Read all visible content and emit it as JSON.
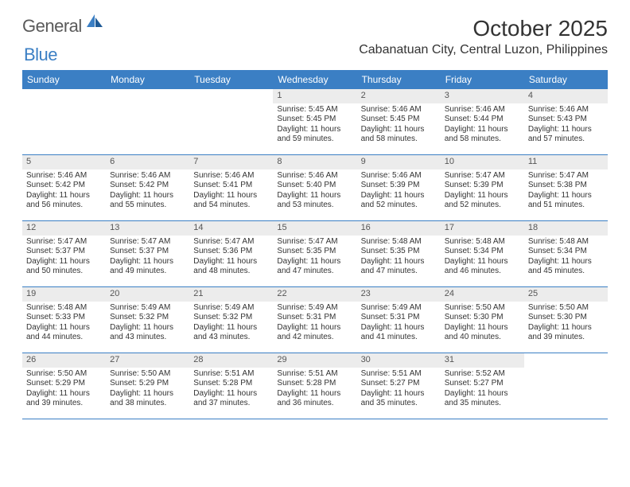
{
  "brand": {
    "text1": "General",
    "text2": "Blue"
  },
  "title": "October 2025",
  "location": "Cabanatuan City, Central Luzon, Philippines",
  "colors": {
    "header_bg": "#3b7fc4",
    "header_text": "#ffffff",
    "daynum_bg": "#ececec",
    "border": "#3b7fc4",
    "text": "#333333"
  },
  "dayNames": [
    "Sunday",
    "Monday",
    "Tuesday",
    "Wednesday",
    "Thursday",
    "Friday",
    "Saturday"
  ],
  "weeks": [
    [
      null,
      null,
      null,
      {
        "n": "1",
        "sr": "5:45 AM",
        "ss": "5:45 PM",
        "dl": "11 hours and 59 minutes."
      },
      {
        "n": "2",
        "sr": "5:46 AM",
        "ss": "5:45 PM",
        "dl": "11 hours and 58 minutes."
      },
      {
        "n": "3",
        "sr": "5:46 AM",
        "ss": "5:44 PM",
        "dl": "11 hours and 58 minutes."
      },
      {
        "n": "4",
        "sr": "5:46 AM",
        "ss": "5:43 PM",
        "dl": "11 hours and 57 minutes."
      }
    ],
    [
      {
        "n": "5",
        "sr": "5:46 AM",
        "ss": "5:42 PM",
        "dl": "11 hours and 56 minutes."
      },
      {
        "n": "6",
        "sr": "5:46 AM",
        "ss": "5:42 PM",
        "dl": "11 hours and 55 minutes."
      },
      {
        "n": "7",
        "sr": "5:46 AM",
        "ss": "5:41 PM",
        "dl": "11 hours and 54 minutes."
      },
      {
        "n": "8",
        "sr": "5:46 AM",
        "ss": "5:40 PM",
        "dl": "11 hours and 53 minutes."
      },
      {
        "n": "9",
        "sr": "5:46 AM",
        "ss": "5:39 PM",
        "dl": "11 hours and 52 minutes."
      },
      {
        "n": "10",
        "sr": "5:47 AM",
        "ss": "5:39 PM",
        "dl": "11 hours and 52 minutes."
      },
      {
        "n": "11",
        "sr": "5:47 AM",
        "ss": "5:38 PM",
        "dl": "11 hours and 51 minutes."
      }
    ],
    [
      {
        "n": "12",
        "sr": "5:47 AM",
        "ss": "5:37 PM",
        "dl": "11 hours and 50 minutes."
      },
      {
        "n": "13",
        "sr": "5:47 AM",
        "ss": "5:37 PM",
        "dl": "11 hours and 49 minutes."
      },
      {
        "n": "14",
        "sr": "5:47 AM",
        "ss": "5:36 PM",
        "dl": "11 hours and 48 minutes."
      },
      {
        "n": "15",
        "sr": "5:47 AM",
        "ss": "5:35 PM",
        "dl": "11 hours and 47 minutes."
      },
      {
        "n": "16",
        "sr": "5:48 AM",
        "ss": "5:35 PM",
        "dl": "11 hours and 47 minutes."
      },
      {
        "n": "17",
        "sr": "5:48 AM",
        "ss": "5:34 PM",
        "dl": "11 hours and 46 minutes."
      },
      {
        "n": "18",
        "sr": "5:48 AM",
        "ss": "5:34 PM",
        "dl": "11 hours and 45 minutes."
      }
    ],
    [
      {
        "n": "19",
        "sr": "5:48 AM",
        "ss": "5:33 PM",
        "dl": "11 hours and 44 minutes."
      },
      {
        "n": "20",
        "sr": "5:49 AM",
        "ss": "5:32 PM",
        "dl": "11 hours and 43 minutes."
      },
      {
        "n": "21",
        "sr": "5:49 AM",
        "ss": "5:32 PM",
        "dl": "11 hours and 43 minutes."
      },
      {
        "n": "22",
        "sr": "5:49 AM",
        "ss": "5:31 PM",
        "dl": "11 hours and 42 minutes."
      },
      {
        "n": "23",
        "sr": "5:49 AM",
        "ss": "5:31 PM",
        "dl": "11 hours and 41 minutes."
      },
      {
        "n": "24",
        "sr": "5:50 AM",
        "ss": "5:30 PM",
        "dl": "11 hours and 40 minutes."
      },
      {
        "n": "25",
        "sr": "5:50 AM",
        "ss": "5:30 PM",
        "dl": "11 hours and 39 minutes."
      }
    ],
    [
      {
        "n": "26",
        "sr": "5:50 AM",
        "ss": "5:29 PM",
        "dl": "11 hours and 39 minutes."
      },
      {
        "n": "27",
        "sr": "5:50 AM",
        "ss": "5:29 PM",
        "dl": "11 hours and 38 minutes."
      },
      {
        "n": "28",
        "sr": "5:51 AM",
        "ss": "5:28 PM",
        "dl": "11 hours and 37 minutes."
      },
      {
        "n": "29",
        "sr": "5:51 AM",
        "ss": "5:28 PM",
        "dl": "11 hours and 36 minutes."
      },
      {
        "n": "30",
        "sr": "5:51 AM",
        "ss": "5:27 PM",
        "dl": "11 hours and 35 minutes."
      },
      {
        "n": "31",
        "sr": "5:52 AM",
        "ss": "5:27 PM",
        "dl": "11 hours and 35 minutes."
      },
      null
    ]
  ],
  "labels": {
    "sunrise": "Sunrise:",
    "sunset": "Sunset:",
    "daylight": "Daylight:"
  }
}
